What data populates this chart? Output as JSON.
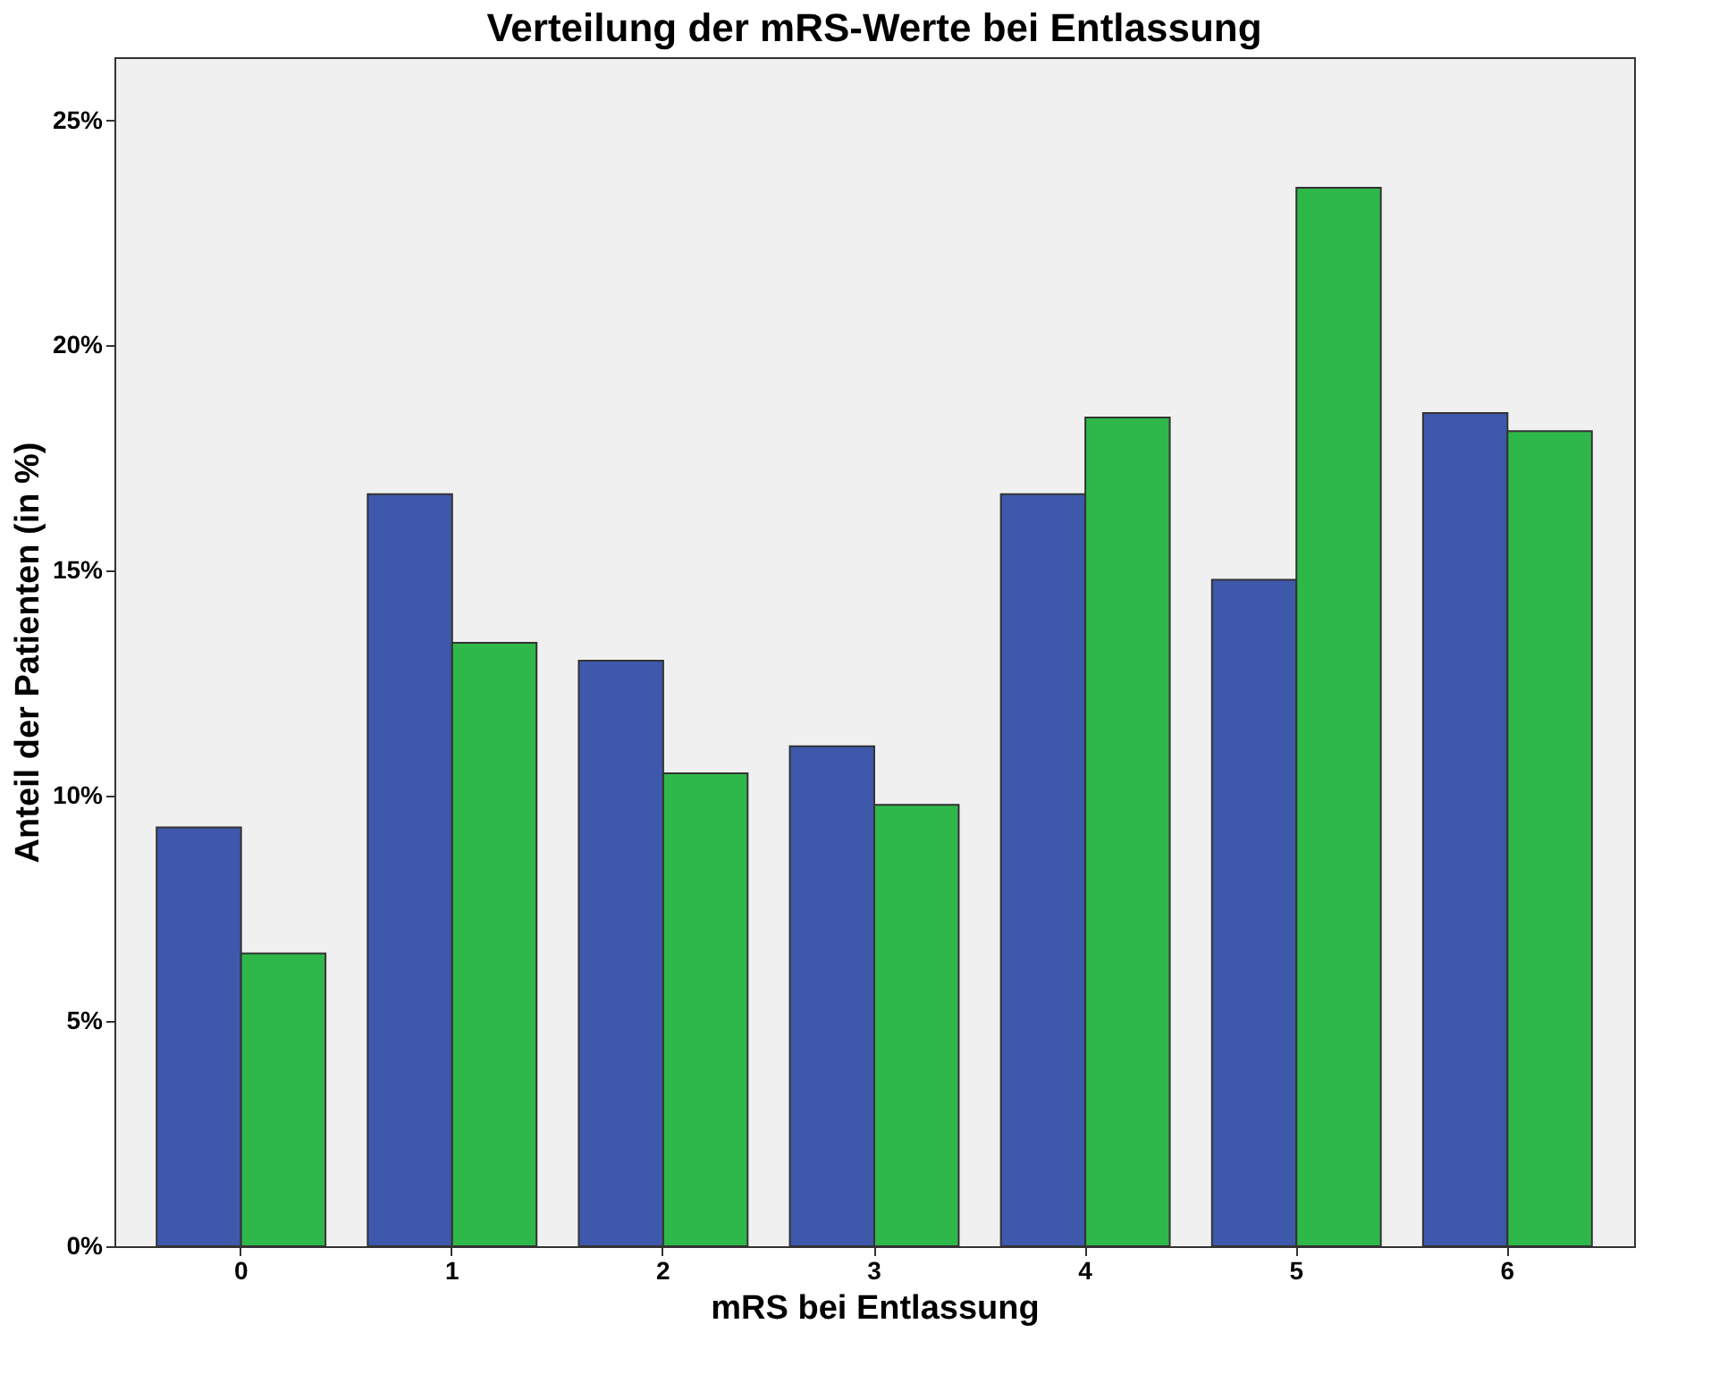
{
  "chart_data": {
    "type": "bar",
    "title": "Verteilung der mRS-Werte bei Entlassung",
    "xlabel": "mRS bei Entlassung",
    "ylabel": "Anteil der Patienten (in %)",
    "categories": [
      "0",
      "1",
      "2",
      "3",
      "4",
      "5",
      "6"
    ],
    "series": [
      {
        "color": "#3e58ac",
        "values": [
          9.3,
          16.7,
          13.0,
          11.1,
          16.7,
          14.8,
          18.5
        ]
      },
      {
        "color": "#2fb84a",
        "values": [
          6.5,
          13.4,
          10.5,
          9.8,
          18.4,
          23.5,
          18.1
        ]
      }
    ],
    "ylim": [
      0,
      26.4
    ],
    "yticks": [
      {
        "value": 0,
        "label": "0%"
      },
      {
        "value": 5,
        "label": "5%"
      },
      {
        "value": 10,
        "label": "10%"
      },
      {
        "value": 15,
        "label": "15%"
      },
      {
        "value": 20,
        "label": "20%"
      },
      {
        "value": 25,
        "label": "25%"
      }
    ],
    "grid": false,
    "legend": false
  }
}
